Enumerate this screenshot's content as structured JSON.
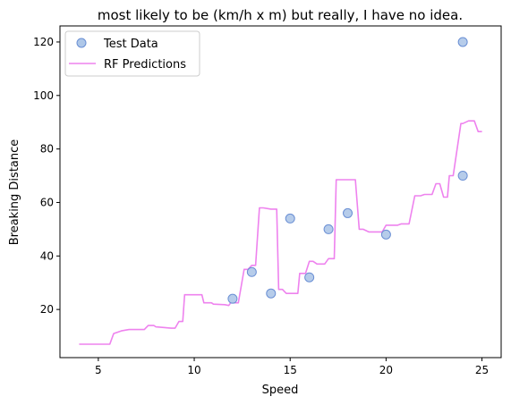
{
  "chart_data": {
    "type": "line",
    "title": "most likely to be (km/h x m) but really, I have no idea.",
    "xlabel": "Speed",
    "ylabel": "Breaking Distance",
    "xlim": [
      3,
      26
    ],
    "ylim": [
      2,
      126
    ],
    "xticks": [
      5,
      10,
      15,
      20,
      25
    ],
    "yticks": [
      20,
      40,
      60,
      80,
      100,
      120
    ],
    "grid": false,
    "legend_position": "upper-left",
    "series": [
      {
        "name": "Test Data",
        "kind": "scatter",
        "color": "#aec7e8",
        "edgecolor": "#6a8fd4",
        "x": [
          12,
          13,
          14,
          15,
          16,
          17,
          18,
          20,
          24,
          24
        ],
        "y": [
          24,
          34,
          26,
          54,
          32,
          50,
          56,
          48,
          70,
          120
        ]
      },
      {
        "name": "RF Predictions",
        "kind": "line",
        "color": "#ee82ee",
        "x": [
          4,
          5.6,
          5.8,
          6.2,
          6.6,
          7.4,
          7.6,
          7.9,
          8.0,
          8.8,
          9.0,
          9.2,
          9.4,
          9.5,
          9.7,
          10.4,
          10.5,
          10.9,
          11.0,
          11.6,
          11.8,
          11.9,
          12.3,
          12.6,
          12.8,
          13.0,
          13.2,
          13.4,
          13.6,
          14.0,
          14.3,
          14.4,
          14.6,
          14.8,
          15.0,
          15.4,
          15.5,
          15.8,
          16.0,
          16.2,
          16.4,
          16.6,
          16.8,
          17.0,
          17.3,
          17.4,
          17.6,
          18.4,
          18.6,
          18.8,
          19.1,
          19.3,
          19.8,
          20.0,
          20.6,
          20.8,
          21.2,
          21.5,
          21.8,
          22.0,
          22.4,
          22.6,
          22.8,
          23.0,
          23.2,
          23.3,
          23.5,
          23.9,
          24.0,
          24.3,
          24.6,
          24.8,
          25.0
        ],
        "y": [
          7,
          7,
          11,
          12,
          12.5,
          12.5,
          14,
          14,
          13.5,
          13,
          13,
          15.5,
          15.5,
          25.5,
          25.5,
          25.5,
          22.5,
          22.5,
          22,
          21.8,
          21.5,
          22.5,
          22.5,
          35,
          35,
          36.5,
          36.5,
          58,
          58,
          57.5,
          57.5,
          27.5,
          27.5,
          26,
          26,
          26,
          33.5,
          33.5,
          38,
          38,
          37,
          37,
          37,
          39,
          39,
          68.5,
          68.5,
          68.5,
          50,
          50,
          49,
          49,
          49,
          51.5,
          51.5,
          52,
          52,
          62.5,
          62.5,
          63,
          63,
          67,
          67,
          62,
          62,
          70,
          70,
          89.5,
          89.5,
          90.5,
          90.5,
          86.5,
          86.5
        ]
      }
    ]
  }
}
